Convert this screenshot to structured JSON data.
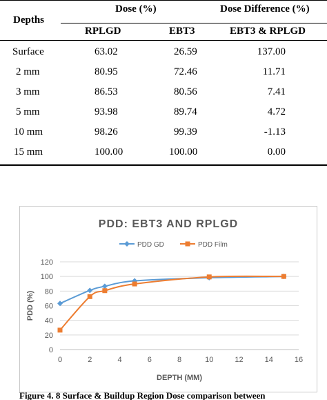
{
  "table": {
    "header": {
      "depths": "Depths",
      "dose_group": "Dose (%)",
      "diff_group": "Dose Difference (%)",
      "col_rplgd": "RPLGD",
      "col_ebt3": "EBT3",
      "col_diff": "EBT3 & RPLGD"
    },
    "rows": [
      {
        "depth": "Surface",
        "rplgd": "63.02",
        "ebt3": "26.59",
        "diff": "137.00"
      },
      {
        "depth": "2 mm",
        "rplgd": "80.95",
        "ebt3": "72.46",
        "diff": "11.71"
      },
      {
        "depth": "3 mm",
        "rplgd": "86.53",
        "ebt3": "80.56",
        "diff": "7.41"
      },
      {
        "depth": "5 mm",
        "rplgd": "93.98",
        "ebt3": "89.74",
        "diff": "4.72"
      },
      {
        "depth": "10 mm",
        "rplgd": "98.26",
        "ebt3": "99.39",
        "diff": "-1.13"
      },
      {
        "depth": "15 mm",
        "rplgd": "100.00",
        "ebt3": "100.00",
        "diff": "0.00"
      }
    ]
  },
  "chart_data": {
    "type": "line",
    "title": "PDD: EBT3 AND RPLGD",
    "xlabel": "DEPTH (MM)",
    "ylabel": "PDD (%)",
    "xlim": [
      0,
      16
    ],
    "ylim": [
      0,
      120
    ],
    "xticks": [
      "0",
      "2",
      "4",
      "6",
      "8",
      "10",
      "12",
      "14",
      "16"
    ],
    "yticks": [
      "0",
      "20",
      "40",
      "60",
      "80",
      "100",
      "120"
    ],
    "grid": "horizontal",
    "legend_position": "top",
    "series": [
      {
        "name": "PDD GD",
        "color": "#5b9bd5",
        "marker": "diamond",
        "x": [
          0,
          2,
          3,
          5,
          10,
          15
        ],
        "y": [
          63.02,
          80.95,
          86.53,
          93.98,
          98.26,
          100.0
        ]
      },
      {
        "name": "PDD Film",
        "color": "#ed7d31",
        "marker": "square",
        "x": [
          0,
          2,
          3,
          5,
          10,
          15
        ],
        "y": [
          26.59,
          72.46,
          80.56,
          89.74,
          99.39,
          100.0
        ]
      }
    ]
  },
  "caption": "Figure 4. 8 Surface & Buildup Region Dose comparison between"
}
